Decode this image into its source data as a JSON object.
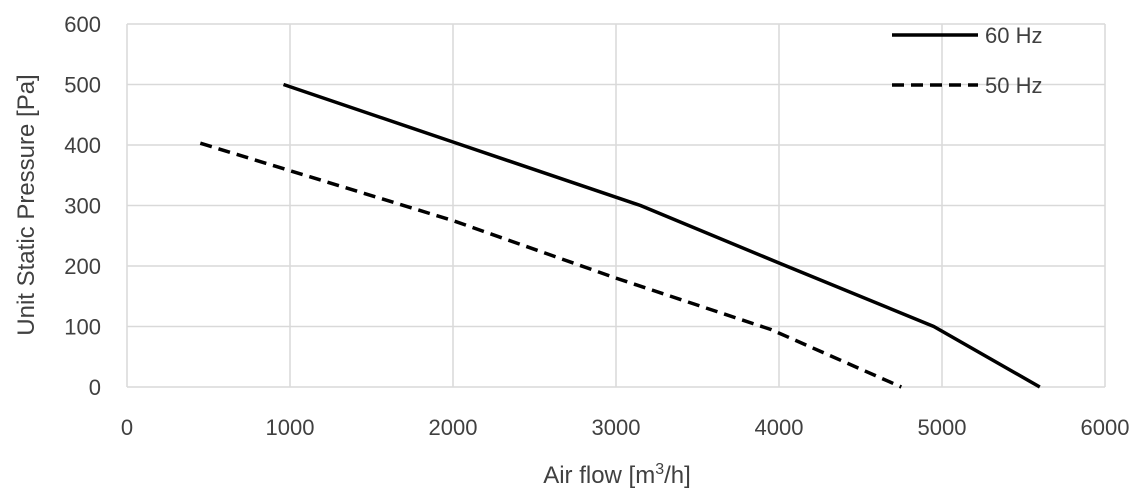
{
  "chart_data": {
    "type": "line",
    "xlabel": "Air flow [m³/h]",
    "xlabel_base": "Air flow [m",
    "xlabel_sup": "3",
    "xlabel_tail": "/h]",
    "ylabel": "Unit Static Pressure [Pa]",
    "xlim": [
      0,
      6000
    ],
    "ylim": [
      0,
      600
    ],
    "xticks": [
      "0",
      "1000",
      "2000",
      "3000",
      "4000",
      "5000",
      "6000"
    ],
    "yticks": [
      "0",
      "100",
      "200",
      "300",
      "400",
      "500",
      "600"
    ],
    "grid": true,
    "legend_position": "top-right",
    "series": [
      {
        "name": "60 Hz",
        "style": "solid",
        "color": "#000000",
        "points": [
          [
            960,
            500
          ],
          [
            2000,
            405
          ],
          [
            3150,
            300
          ],
          [
            4000,
            205
          ],
          [
            4950,
            100
          ],
          [
            5600,
            0
          ]
        ]
      },
      {
        "name": "50 Hz",
        "style": "dashed",
        "color": "#000000",
        "points": [
          [
            450,
            403
          ],
          [
            2000,
            275
          ],
          [
            3000,
            180
          ],
          [
            3950,
            95
          ],
          [
            4750,
            0
          ]
        ]
      }
    ]
  }
}
